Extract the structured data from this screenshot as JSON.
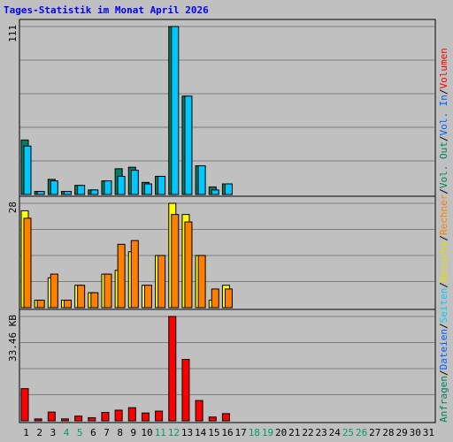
{
  "chart_data": [
    {
      "type": "bar",
      "panel": "top",
      "title": "Tages-Statistik im Monat April 2026",
      "ylim": [
        0,
        111
      ],
      "y_tick_label": "111",
      "categories": [
        "1",
        "2",
        "3",
        "4",
        "5",
        "6",
        "7",
        "8",
        "9",
        "10",
        "11",
        "12",
        "13",
        "14",
        "15",
        "16"
      ],
      "series": [
        {
          "name": "Anfragen",
          "color": "#008060",
          "values": [
            36,
            2,
            10,
            2,
            6,
            3,
            9,
            17,
            18,
            8,
            12,
            111,
            65,
            19,
            5,
            7
          ]
        },
        {
          "name": "Dateien",
          "color": "#00c8ff",
          "values": [
            32,
            2,
            9,
            2,
            6,
            3,
            9,
            12,
            16,
            7,
            12,
            111,
            65,
            19,
            3,
            7
          ]
        },
        {
          "name": "Seiten",
          "color": "#00e0ff",
          "values": [
            0,
            0,
            0,
            0,
            0,
            0,
            0,
            0,
            0,
            0,
            0,
            0,
            0,
            0,
            0,
            0
          ]
        }
      ]
    },
    {
      "type": "bar",
      "panel": "middle",
      "ylim": [
        0,
        28
      ],
      "y_tick_label": "28",
      "categories": [
        "1",
        "2",
        "3",
        "4",
        "5",
        "6",
        "7",
        "8",
        "9",
        "10",
        "11",
        "12",
        "13",
        "14",
        "15",
        "16"
      ],
      "series": [
        {
          "name": "Besuche",
          "color": "#ffff00",
          "values": [
            26,
            2,
            8,
            2,
            6,
            4,
            9,
            10,
            15,
            6,
            14,
            28,
            25,
            14,
            2,
            6
          ]
        },
        {
          "name": "Rechner",
          "color": "#ff8000",
          "values": [
            24,
            2,
            9,
            2,
            6,
            4,
            9,
            17,
            18,
            6,
            14,
            25,
            23,
            14,
            5,
            5
          ]
        }
      ]
    },
    {
      "type": "bar",
      "panel": "bottom",
      "ylim": [
        0,
        33.46
      ],
      "y_tick_label": "33.46 KB",
      "categories": [
        "1",
        "2",
        "3",
        "4",
        "5",
        "6",
        "7",
        "8",
        "9",
        "10",
        "11",
        "12",
        "13",
        "14",
        "15",
        "16"
      ],
      "series": [
        {
          "name": "Volumen",
          "color": "#ff0000",
          "values": [
            10.3,
            0.6,
            2.8,
            0.6,
            1.5,
            1.0,
            2.7,
            3.4,
            4.2,
            2.5,
            3.1,
            33.46,
            19.7,
            6.5,
            1.2,
            2.3
          ]
        }
      ]
    }
  ],
  "x_labels": [
    "1",
    "2",
    "3",
    "4",
    "5",
    "6",
    "7",
    "8",
    "9",
    "10",
    "11",
    "12",
    "13",
    "14",
    "15",
    "16",
    "17",
    "18",
    "19",
    "20",
    "21",
    "22",
    "23",
    "24",
    "25",
    "26",
    "27",
    "28",
    "29",
    "30",
    "31"
  ],
  "weekend_days": [
    4,
    5,
    11,
    12,
    18,
    19,
    25,
    26
  ],
  "right_legend": [
    {
      "text": "Anfragen",
      "color": "#008060"
    },
    {
      "text": "/",
      "color": "#000000"
    },
    {
      "text": "Dateien",
      "color": "#0060ff"
    },
    {
      "text": "/",
      "color": "#000000"
    },
    {
      "text": "Seiten",
      "color": "#00d0ff"
    },
    {
      "text": "/",
      "color": "#000000"
    },
    {
      "text": "Besuche",
      "color": "#e0e000"
    },
    {
      "text": "/",
      "color": "#000000"
    },
    {
      "text": "Rechner",
      "color": "#ff8000"
    },
    {
      "text": "/",
      "color": "#000000"
    },
    {
      "text": "Vol. Out",
      "color": "#008060"
    },
    {
      "text": "/",
      "color": "#000000"
    },
    {
      "text": "Vol. In",
      "color": "#0060ff"
    },
    {
      "text": "/",
      "color": "#000000"
    },
    {
      "text": "Volumen",
      "color": "#ff0000"
    }
  ],
  "colors": {
    "title": "#0000ff",
    "weekend_label": "#00a060",
    "weekday_label": "#000000",
    "panel_bg": "#c0c0c0",
    "grid": "#808080"
  }
}
